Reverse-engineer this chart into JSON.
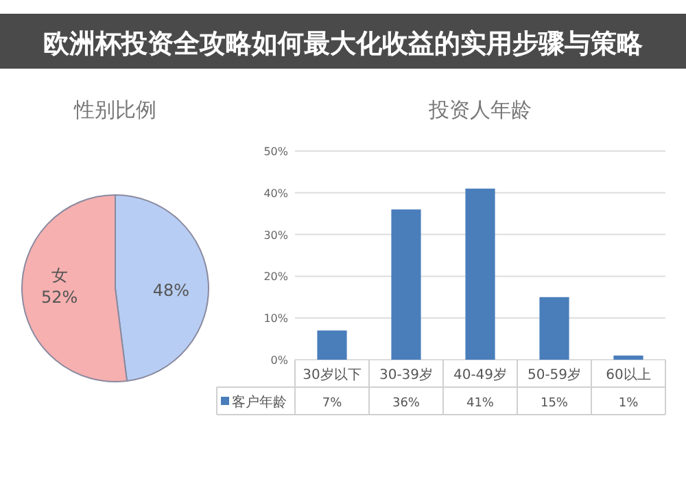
{
  "chart_data": [
    {
      "type": "other",
      "title": "欧洲杯投资全攻略如何最大化收益的实用步骤与策略"
    },
    {
      "type": "pie",
      "title": "性别比例",
      "categories": [
        null,
        "女"
      ],
      "values": [
        48,
        52
      ],
      "colors": [
        "#b7cdf3",
        "#f6b0b0"
      ],
      "value_labels": [
        "48%",
        "52%"
      ]
    },
    {
      "type": "bar",
      "title": "投资人年龄",
      "categories": [
        "30岁以下",
        "30-39岁",
        "40-49岁",
        "50-59岁",
        "60以上"
      ],
      "series": [
        {
          "name": "客户年龄",
          "color": "#4a7ebb",
          "values": [
            7,
            36,
            41,
            15,
            1
          ]
        }
      ],
      "value_labels": [
        "7%",
        "36%",
        "41%",
        "15%",
        "1%"
      ],
      "ylim": [
        0,
        50
      ],
      "yticks": [
        {
          "value": 0,
          "label": "0%"
        },
        {
          "value": 10,
          "label": "10%"
        },
        {
          "value": 20,
          "label": "20%"
        },
        {
          "value": 30,
          "label": "30%"
        },
        {
          "value": 40,
          "label": "40%"
        },
        {
          "value": 50,
          "label": "50%"
        }
      ],
      "grid": "y",
      "legend": "bottom"
    }
  ]
}
